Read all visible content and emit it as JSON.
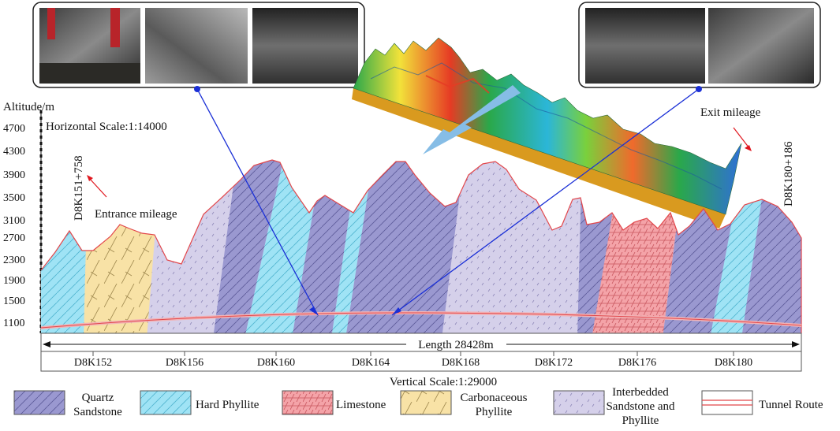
{
  "axis": {
    "title": "Altitude/m",
    "ticks": [
      "4700",
      "4300",
      "3900",
      "3500",
      "3100",
      "2700",
      "2300",
      "1900",
      "1500",
      "1100"
    ]
  },
  "scales": {
    "horizontal": "Horizontal Scale:1:14000",
    "vertical": "Vertical Scale:1:29000"
  },
  "mileage": {
    "entrance_label": "Entrance mileage",
    "entrance_value": "D8K151+758",
    "exit_label": "Exit mileage",
    "exit_value": "D8K180+186"
  },
  "length_label": "Length 28428m",
  "stations": [
    "D8K152",
    "D8K156",
    "D8K160",
    "D8K164",
    "D8K168",
    "D8K172",
    "D8K176",
    "D8K180"
  ],
  "legend": {
    "quartz_l1": "Quartz",
    "quartz_l2": "Sandstone",
    "hard_phyllite": "Hard Phyllite",
    "limestone": "Limestone",
    "carb_l1": "Carbonaceous",
    "carb_l2": "Phyllite",
    "inter_l1": "Interbedded",
    "inter_l2": "Sandstone and",
    "inter_l3": "Phyllite",
    "tunnel": "Tunnel Route"
  },
  "colors": {
    "quartz_sandstone": "#9a98d0",
    "hard_phyllite": "#9fe3f5",
    "limestone": "#f4a3a8",
    "carbonaceous_phyllite": "#f8e2a6",
    "interbedded": "#d5d0ea",
    "tunnel_route": "#e2474b",
    "connector": "#1a2fd6"
  }
}
